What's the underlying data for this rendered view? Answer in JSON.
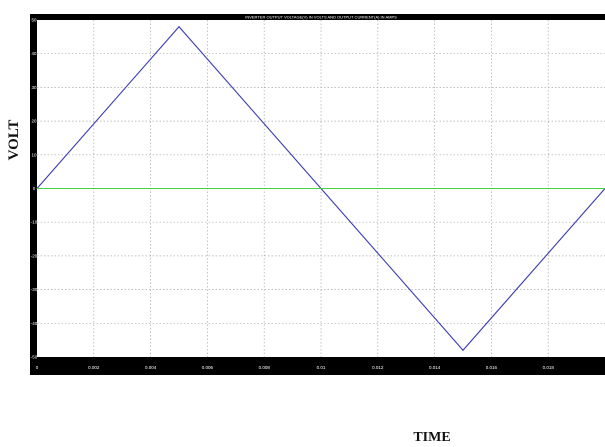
{
  "chart_data": {
    "type": "line",
    "title": "INVERTER OUTPUT VOLTAGE(V) IN VOLTS AND OUTPUT CURRENT(A) IN AMPS",
    "xlabel": "TIME",
    "ylabel": "VOLT",
    "xlim": [
      0,
      0.02
    ],
    "ylim": [
      -50,
      50
    ],
    "grid": true,
    "x_ticks": [
      0,
      0.002,
      0.004,
      0.006,
      0.008,
      0.01,
      0.012,
      0.014,
      0.016,
      0.018
    ],
    "x_tick_labels": [
      "0",
      "0.002",
      "0.004",
      "0.006",
      "0.008",
      "0.01",
      "0.012",
      "0.014",
      "0.016",
      "0.018"
    ],
    "y_ticks": [
      -50,
      -40,
      -30,
      -20,
      -10,
      0,
      10,
      20,
      30,
      40,
      50
    ],
    "y_tick_labels": [
      "-50",
      "-40",
      "-30",
      "-20",
      "-10",
      "0",
      "10",
      "20",
      "30",
      "40",
      "50"
    ],
    "series": [
      {
        "color": "#3b3bb5",
        "x": [
          0,
          0.005,
          0.015,
          0.02
        ],
        "y": [
          0,
          48,
          -48,
          0
        ]
      },
      {
        "color": "#46d246",
        "x": [
          0,
          0.02
        ],
        "y": [
          0,
          0
        ]
      }
    ]
  },
  "colors": {
    "frame": "#000000",
    "plot_bg": "#ffffff",
    "grid": "#aaaaaa"
  }
}
